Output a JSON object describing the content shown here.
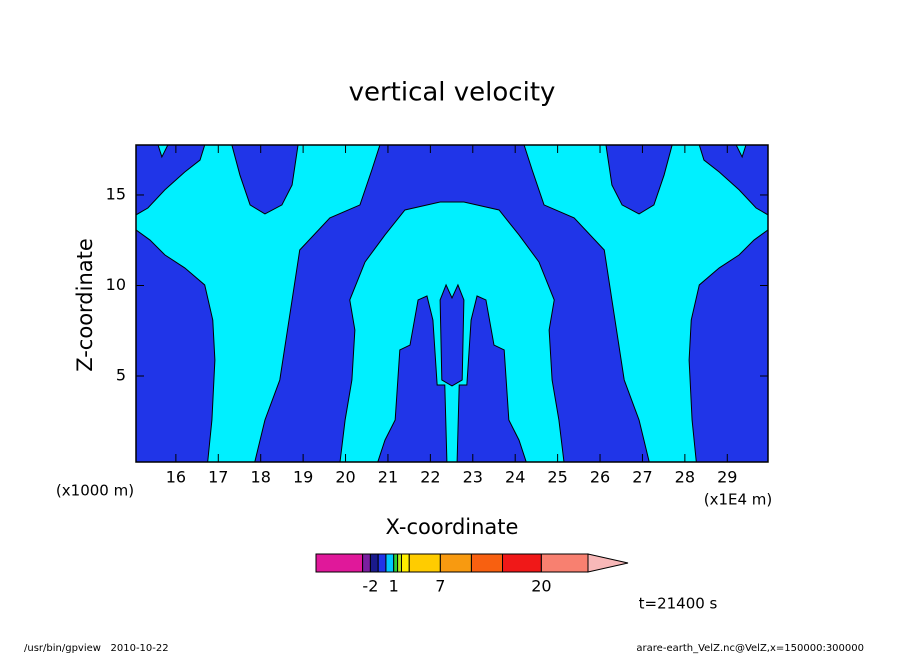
{
  "chart_data": {
    "type": "contour",
    "title": "vertical velocity",
    "xlabel": "X-coordinate",
    "ylabel": "Z-coordinate",
    "xlabel_unit": "(x1E4 m)",
    "ylabel_unit": "(x1000 m)",
    "annotation": "t=21400 s",
    "footer_left": "/usr/bin/gpview   2010-10-22",
    "footer_right": "arare-earth_VelZ.nc@VelZ,x=150000:300000",
    "xlim": [
      15.06,
      29.96
    ],
    "ylim": [
      0.25,
      17.76
    ],
    "xticks": [
      16,
      17,
      18,
      19,
      20,
      21,
      22,
      23,
      24,
      25,
      26,
      27,
      28,
      29
    ],
    "yticks": [
      5,
      10,
      15
    ],
    "background_color": "#00f0ff",
    "line_color": "#000000",
    "regions": [
      {
        "color": "#2035e8",
        "x": [
          15.06,
          15.58,
          15.67,
          15.81,
          16.68,
          16.57,
          16.21,
          15.74,
          15.34,
          15.06
        ],
        "y": [
          17.76,
          17.76,
          17.1,
          17.76,
          17.76,
          16.93,
          16.27,
          15.28,
          14.28,
          13.9
        ]
      },
      {
        "color": "#2035e8",
        "x": [
          29.96,
          29.44,
          29.35,
          29.21,
          28.34,
          28.45,
          28.81,
          29.28,
          29.68,
          29.96
        ],
        "y": [
          17.76,
          17.76,
          17.1,
          17.76,
          17.76,
          16.93,
          16.27,
          15.28,
          14.28,
          13.9
        ]
      },
      {
        "color": "#2035e8",
        "x": [
          15.06,
          15.39,
          15.74,
          16.21,
          16.68,
          16.87,
          16.92,
          16.85,
          16.75,
          15.06
        ],
        "y": [
          13.07,
          12.51,
          11.69,
          10.97,
          10.03,
          8.09,
          5.88,
          2.57,
          0.25,
          0.25
        ]
      },
      {
        "color": "#2035e8",
        "x": [
          29.96,
          29.63,
          29.28,
          28.81,
          28.34,
          28.15,
          28.1,
          28.17,
          28.27,
          29.96
        ],
        "y": [
          13.07,
          12.51,
          11.69,
          10.97,
          10.03,
          8.09,
          5.88,
          2.57,
          0.25,
          0.25
        ]
      },
      {
        "color": "#2035e8",
        "x": [
          17.32,
          17.51,
          17.75,
          18.1,
          18.5,
          18.74,
          18.88
        ],
        "y": [
          17.76,
          16.1,
          14.45,
          13.95,
          14.45,
          15.55,
          17.76
        ]
      },
      {
        "color": "#2035e8",
        "x": [
          27.7,
          27.51,
          27.27,
          26.92,
          26.52,
          26.28,
          26.14
        ],
        "y": [
          17.76,
          16.1,
          14.45,
          13.95,
          14.45,
          15.55,
          17.76
        ]
      },
      {
        "color": "#2035e8",
        "x": [
          17.86,
          18.1,
          18.45,
          18.74,
          18.92,
          19.63,
          20.34,
          20.62,
          20.81,
          24.21,
          24.4,
          24.68,
          25.39,
          26.1,
          26.28,
          26.57,
          26.92,
          27.16
        ],
        "y": [
          0.25,
          2.57,
          4.78,
          9.2,
          11.96,
          13.73,
          14.45,
          16.38,
          17.76,
          17.76,
          16.38,
          14.45,
          13.73,
          11.96,
          9.2,
          4.78,
          2.57,
          0.25
        ]
      },
      {
        "color": "#00f0ff",
        "x": [
          19.87,
          19.99,
          20.15,
          20.22,
          20.1,
          20.46,
          20.93,
          21.4,
          22.23,
          22.79,
          23.62,
          24.09,
          24.56,
          24.92,
          24.8,
          24.87,
          25.03,
          25.15
        ],
        "y": [
          0.25,
          2.57,
          4.78,
          7.54,
          9.2,
          11.3,
          12.79,
          14.17,
          14.61,
          14.61,
          14.17,
          12.79,
          11.3,
          9.2,
          7.54,
          4.78,
          2.57,
          0.25
        ]
      },
      {
        "color": "#2035e8",
        "x": [
          20.76,
          20.93,
          21.17,
          21.28,
          21.52,
          21.71,
          21.92,
          22.06,
          22.16,
          22.34,
          22.39
        ],
        "y": [
          0.25,
          1.46,
          2.57,
          6.44,
          6.71,
          9.2,
          9.42,
          8.09,
          4.5,
          4.5,
          0.25
        ]
      },
      {
        "color": "#2035e8",
        "x": [
          22.63,
          22.68,
          22.86,
          22.96,
          23.1,
          23.31,
          23.5,
          23.74,
          23.85,
          24.09,
          24.26
        ],
        "y": [
          0.25,
          4.5,
          4.5,
          8.09,
          9.42,
          9.2,
          6.71,
          6.44,
          2.57,
          1.46,
          0.25
        ]
      },
      {
        "color": "#2035e8",
        "x": [
          22.23,
          22.37,
          22.51,
          22.65,
          22.79,
          22.75,
          22.51,
          22.27
        ],
        "y": [
          9.2,
          10.03,
          9.31,
          10.03,
          9.2,
          4.78,
          4.45,
          4.78
        ]
      }
    ],
    "colorbar": {
      "levels": [
        -9,
        -3,
        -2,
        -1,
        0,
        1,
        1.5,
        2,
        3,
        7,
        11,
        15,
        20,
        26
      ],
      "colors": [
        "#e0189a",
        "#7a1fa0",
        "#1a1a8c",
        "#2035e8",
        "#00c8ff",
        "#29d038",
        "#b5e61d",
        "#ffee00",
        "#ffcc00",
        "#f89a10",
        "#f86010",
        "#f01818",
        "#f88070"
      ],
      "extend_color": "#f8b8b8",
      "ticks": [
        -2,
        1,
        7,
        20
      ]
    }
  }
}
